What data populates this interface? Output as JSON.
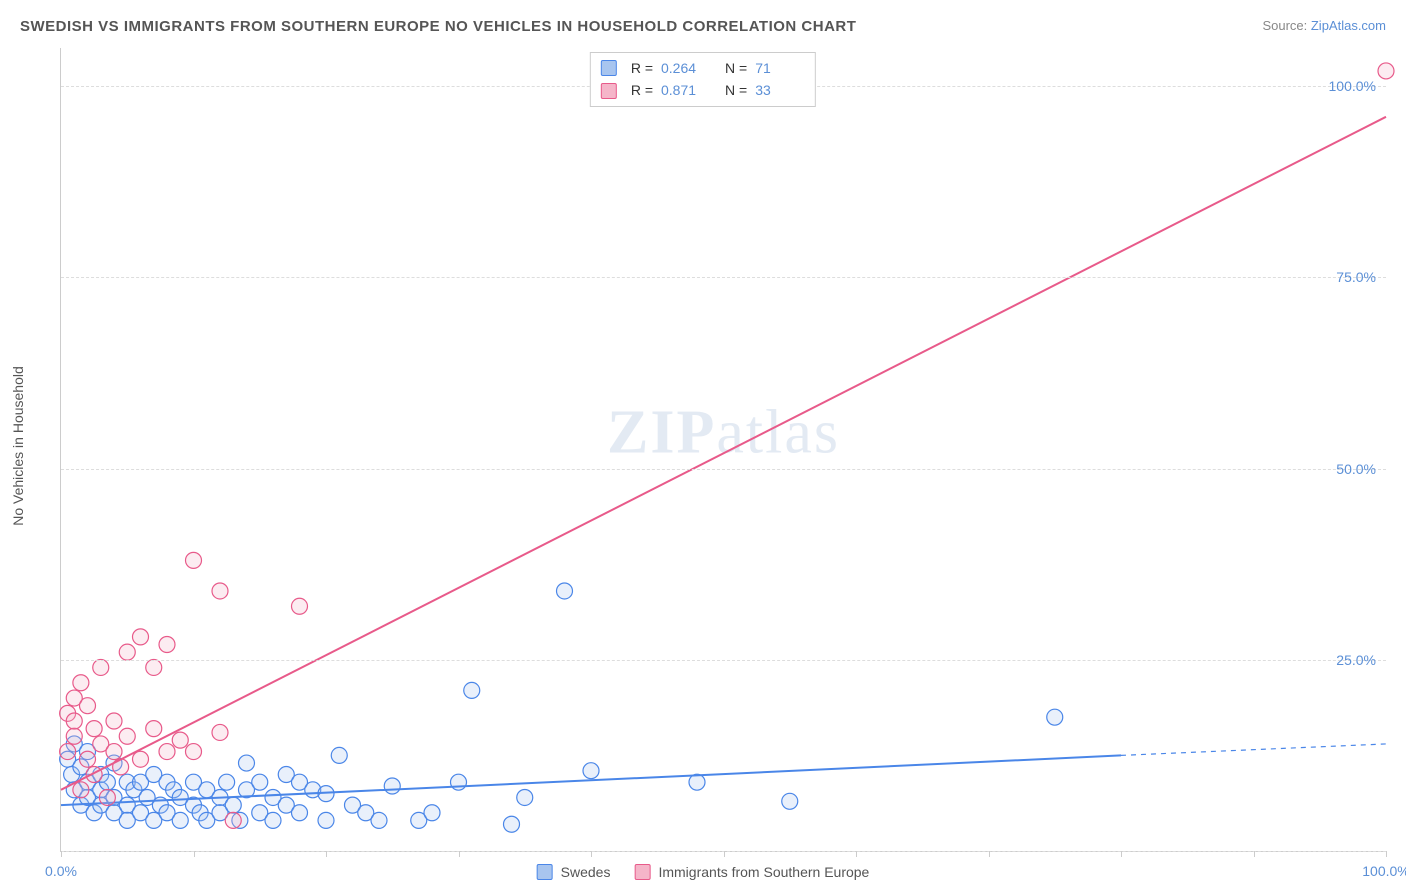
{
  "title": "SWEDISH VS IMMIGRANTS FROM SOUTHERN EUROPE NO VEHICLES IN HOUSEHOLD CORRELATION CHART",
  "source_prefix": "Source: ",
  "source_link": "ZipAtlas.com",
  "ylabel": "No Vehicles in Household",
  "watermark_bold": "ZIP",
  "watermark_rest": "atlas",
  "chart": {
    "type": "scatter-correlation",
    "xlim": [
      0,
      100
    ],
    "ylim": [
      0,
      105
    ],
    "xtick_positions": [
      0,
      10,
      20,
      30,
      40,
      50,
      60,
      70,
      80,
      90,
      100
    ],
    "xtick_labels": {
      "0": "0.0%",
      "100": "100.0%"
    },
    "ytick_positions": [
      25,
      50,
      75,
      100
    ],
    "ytick_labels": [
      "25.0%",
      "50.0%",
      "75.0%",
      "100.0%"
    ],
    "gridline_y": [
      0,
      25,
      50,
      75,
      100
    ],
    "background_color": "#ffffff",
    "grid_color": "#dddddd",
    "axis_color": "#cccccc",
    "marker_radius": 8,
    "marker_stroke_width": 1.2,
    "marker_fill_opacity": 0.25,
    "line_width": 2,
    "series": [
      {
        "id": "swedes",
        "label": "Swedes",
        "color_stroke": "#4a86e8",
        "color_fill": "#a8c5ef",
        "r_value": "0.264",
        "n_value": "71",
        "trend": {
          "x1": 0,
          "y1": 6,
          "x2": 80,
          "y2": 12.5,
          "solid_until_x": 80,
          "extend_to_x": 100,
          "extend_y": 14
        },
        "points": [
          [
            0.5,
            12
          ],
          [
            0.8,
            10
          ],
          [
            1,
            14
          ],
          [
            1,
            8
          ],
          [
            1.5,
            11
          ],
          [
            1.5,
            6
          ],
          [
            2,
            9
          ],
          [
            2,
            7
          ],
          [
            2,
            13
          ],
          [
            2.5,
            5
          ],
          [
            3,
            8
          ],
          [
            3,
            10
          ],
          [
            3,
            6
          ],
          [
            3.5,
            9
          ],
          [
            4,
            7
          ],
          [
            4,
            5
          ],
          [
            4,
            11.5
          ],
          [
            5,
            6
          ],
          [
            5,
            9
          ],
          [
            5,
            4
          ],
          [
            5.5,
            8
          ],
          [
            6,
            5
          ],
          [
            6,
            9
          ],
          [
            6.5,
            7
          ],
          [
            7,
            4
          ],
          [
            7,
            10
          ],
          [
            7.5,
            6
          ],
          [
            8,
            9
          ],
          [
            8,
            5
          ],
          [
            8.5,
            8
          ],
          [
            9,
            4
          ],
          [
            9,
            7
          ],
          [
            10,
            9
          ],
          [
            10,
            6
          ],
          [
            10.5,
            5
          ],
          [
            11,
            4
          ],
          [
            11,
            8
          ],
          [
            12,
            7
          ],
          [
            12,
            5
          ],
          [
            12.5,
            9
          ],
          [
            13,
            6
          ],
          [
            13.5,
            4
          ],
          [
            14,
            8
          ],
          [
            14,
            11.5
          ],
          [
            15,
            5
          ],
          [
            15,
            9
          ],
          [
            16,
            7
          ],
          [
            16,
            4
          ],
          [
            17,
            6
          ],
          [
            17,
            10
          ],
          [
            18,
            5
          ],
          [
            18,
            9
          ],
          [
            19,
            8
          ],
          [
            20,
            4
          ],
          [
            20,
            7.5
          ],
          [
            21,
            12.5
          ],
          [
            22,
            6
          ],
          [
            23,
            5
          ],
          [
            24,
            4
          ],
          [
            25,
            8.5
          ],
          [
            27,
            4
          ],
          [
            28,
            5
          ],
          [
            30,
            9
          ],
          [
            31,
            21
          ],
          [
            34,
            3.5
          ],
          [
            35,
            7
          ],
          [
            38,
            34
          ],
          [
            40,
            10.5
          ],
          [
            48,
            9
          ],
          [
            55,
            6.5
          ],
          [
            75,
            17.5
          ]
        ]
      },
      {
        "id": "immigrants",
        "label": "Immigrants from Southern Europe",
        "color_stroke": "#e85a8a",
        "color_fill": "#f5b5c9",
        "r_value": "0.871",
        "n_value": "33",
        "trend": {
          "x1": 0,
          "y1": 8,
          "x2": 100,
          "y2": 96,
          "solid_until_x": 100,
          "extend_to_x": 100,
          "extend_y": 96
        },
        "points": [
          [
            0.5,
            18
          ],
          [
            0.5,
            13
          ],
          [
            1,
            20
          ],
          [
            1,
            15
          ],
          [
            1,
            17
          ],
          [
            1.5,
            22
          ],
          [
            1.5,
            8
          ],
          [
            2,
            12
          ],
          [
            2,
            19
          ],
          [
            2.5,
            10
          ],
          [
            2.5,
            16
          ],
          [
            3,
            24
          ],
          [
            3,
            14
          ],
          [
            3.5,
            7
          ],
          [
            4,
            13
          ],
          [
            4,
            17
          ],
          [
            4.5,
            11
          ],
          [
            5,
            26
          ],
          [
            5,
            15
          ],
          [
            6,
            28
          ],
          [
            6,
            12
          ],
          [
            7,
            24
          ],
          [
            7,
            16
          ],
          [
            8,
            27
          ],
          [
            8,
            13
          ],
          [
            9,
            14.5
          ],
          [
            10,
            38
          ],
          [
            10,
            13
          ],
          [
            12,
            34
          ],
          [
            12,
            15.5
          ],
          [
            13,
            4
          ],
          [
            18,
            32
          ],
          [
            100,
            102
          ]
        ]
      }
    ]
  },
  "legend_top": {
    "r_label": "R =",
    "n_label": "N ="
  }
}
